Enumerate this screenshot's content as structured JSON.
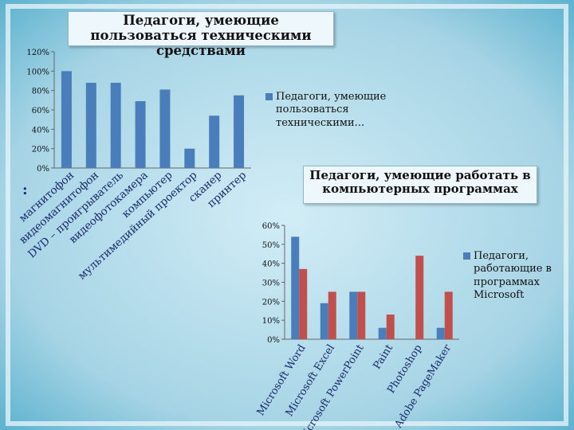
{
  "chart_data": [
    {
      "type": "bar",
      "title": "Педагоги, умеющие пользоваться техническими средствами",
      "categories": [
        "магнитофон",
        "видеомагнитофон",
        "DVD – проигрыватель",
        "видеофотокамера",
        "компьютер",
        "мультимедийный проектор",
        "сканер",
        "принтер"
      ],
      "series": [
        {
          "name": "Педагоги, умеющие пользоваться техническими...",
          "values": [
            100,
            88,
            88,
            69,
            81,
            20,
            54,
            75
          ]
        }
      ],
      "ylim": [
        0,
        120
      ],
      "yticks": [
        "0%",
        "20%",
        "40%",
        "60%",
        "80%",
        "100%",
        "120%"
      ],
      "legend": "right",
      "colors": [
        "#4a7ebb"
      ]
    },
    {
      "type": "bar",
      "title": "Педагоги, умеющие работать в компьютерных программах",
      "categories": [
        "Microsoft Word",
        "Microsoft Excel",
        "Microsoft PowerPoint",
        "Paint",
        "Photoshop",
        "Adobe PageMaker"
      ],
      "series": [
        {
          "name": "Педагоги, работающие в программах Microsoft",
          "values": [
            54,
            19,
            25,
            6,
            0,
            6
          ]
        },
        {
          "name": "",
          "values": [
            37,
            25,
            25,
            13,
            44,
            25
          ]
        }
      ],
      "ylim": [
        0,
        60
      ],
      "yticks": [
        "0%",
        "10%",
        "20%",
        "30%",
        "40%",
        "50%",
        "60%"
      ],
      "legend": "right",
      "colors": [
        "#4a7ebb",
        "#c0504d"
      ]
    }
  ],
  "stray_mark": ":",
  "colors": {
    "background": "#a9d6e6",
    "frame": "#d7eef6",
    "bar_blue": "#4a7ebb",
    "bar_red": "#c0504d"
  }
}
